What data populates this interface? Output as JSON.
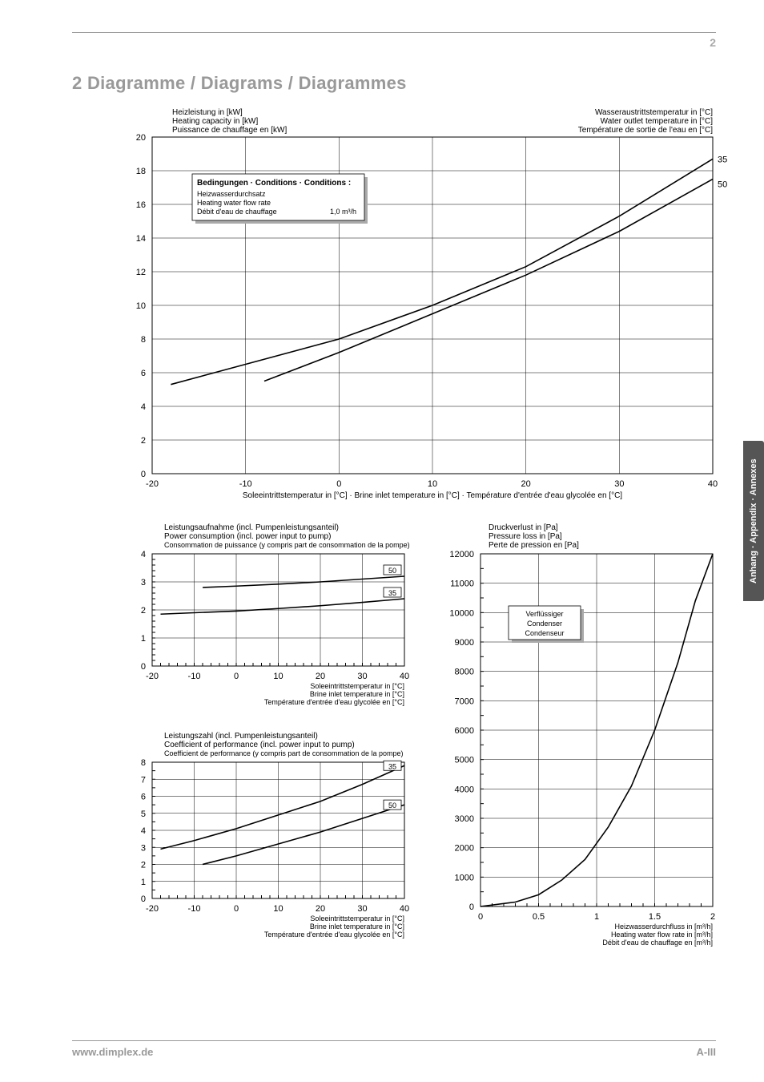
{
  "page_top_number": "2",
  "section_title": "2  Diagramme / Diagrams / Diagrammes",
  "side_tab": "Anhang · Appendix · Annexes",
  "footer_left": "www.dimplex.de",
  "footer_right": "A-III",
  "chart1": {
    "y_title_de": "Heizleistung in [kW]",
    "y_title_en": "Heating capacity in [kW]",
    "y_title_fr": "Puissance de chauffage en [kW]",
    "r_title_de": "Wasseraustrittstemperatur in [°C]",
    "r_title_en": "Water outlet temperature in [°C]",
    "r_title_fr": "Température de sortie de l'eau en [°C]",
    "x_title": "Soleeintrittstemperatur in [°C] · Brine inlet temperature in [°C] · Température d'entrée d'eau glycolée en [°C]",
    "xlim": [
      -20,
      40
    ],
    "xtick_step": 10,
    "ylim": [
      0,
      20
    ],
    "ytick_step": 2,
    "series": [
      {
        "label": "35",
        "points": [
          [
            -18,
            5.3
          ],
          [
            -10,
            6.5
          ],
          [
            0,
            8.0
          ],
          [
            10,
            10.0
          ],
          [
            20,
            12.3
          ],
          [
            30,
            15.3
          ],
          [
            40,
            18.7
          ]
        ]
      },
      {
        "label": "50",
        "points": [
          [
            -8,
            5.5
          ],
          [
            0,
            7.2
          ],
          [
            10,
            9.5
          ],
          [
            20,
            11.8
          ],
          [
            30,
            14.4
          ],
          [
            40,
            17.5
          ]
        ]
      }
    ],
    "cond_title": "Bedingungen · Conditions · Conditions :",
    "cond_l1": "Heizwasserdurchsatz",
    "cond_l2": "Heating water flow rate",
    "cond_l3": "Débit d'eau de chauffage",
    "cond_val": "1,0  m³/h"
  },
  "chart2": {
    "y_title_de": "Leistungsaufnahme (incl. Pumpenleistungsanteil)",
    "y_title_en": "Power consumption (incl. power input to pump)",
    "y_title_fr": "Consommation de puissance (y compris part de consommation de la pompe)",
    "x_title_de": "Soleeintrittstemperatur in [°C]",
    "x_title_en": "Brine inlet temperature in [°C]",
    "x_title_fr": "Température d'entrée d'eau glycolée en [°C]",
    "xlim": [
      -20,
      40
    ],
    "xtick_step": 10,
    "ylim": [
      0,
      4
    ],
    "ytick_step": 1,
    "series": [
      {
        "label": "50",
        "points": [
          [
            -8,
            2.8
          ],
          [
            0,
            2.85
          ],
          [
            10,
            2.92
          ],
          [
            20,
            3.0
          ],
          [
            30,
            3.1
          ],
          [
            40,
            3.2
          ]
        ]
      },
      {
        "label": "35",
        "points": [
          [
            -18,
            1.85
          ],
          [
            -10,
            1.9
          ],
          [
            0,
            1.96
          ],
          [
            10,
            2.05
          ],
          [
            20,
            2.15
          ],
          [
            30,
            2.27
          ],
          [
            40,
            2.4
          ]
        ]
      }
    ]
  },
  "chart3": {
    "y_title_de": "Leistungszahl (incl. Pumpenleistungsanteil)",
    "y_title_en": "Coefficient of performance (incl. power input to pump)",
    "y_title_fr": "Coefficient de performance (y compris part de consommation de la pompe)",
    "x_title_de": "Soleeintrittstemperatur in [°C]",
    "x_title_en": "Brine inlet temperature in [°C]",
    "x_title_fr": "Température d'entrée d'eau glycolée en [°C]",
    "xlim": [
      -20,
      40
    ],
    "xtick_step": 10,
    "ylim": [
      0,
      8
    ],
    "ytick_step": 1,
    "series": [
      {
        "label": "35",
        "points": [
          [
            -18,
            2.9
          ],
          [
            -10,
            3.4
          ],
          [
            0,
            4.1
          ],
          [
            10,
            4.9
          ],
          [
            20,
            5.7
          ],
          [
            30,
            6.7
          ],
          [
            40,
            7.8
          ]
        ]
      },
      {
        "label": "50",
        "points": [
          [
            -8,
            2.0
          ],
          [
            0,
            2.5
          ],
          [
            10,
            3.2
          ],
          [
            20,
            3.9
          ],
          [
            30,
            4.7
          ],
          [
            40,
            5.5
          ]
        ]
      }
    ]
  },
  "chart4": {
    "y_title_de": "Druckverlust in [Pa]",
    "y_title_en": "Pressure loss in [Pa]",
    "y_title_fr": "Perte de pression en [Pa]",
    "x_title_de": "Heizwasserdurchfluss in [m³/h]",
    "x_title_en": "Heating water flow rate in [m³/h]",
    "x_title_fr": "Débit d'eau de chauffage en [m³/h]",
    "xlim": [
      0,
      2
    ],
    "xtick_step": 0.5,
    "ylim": [
      0,
      12000
    ],
    "ytick_step": 1000,
    "box_l1": "Verflüssiger",
    "box_l2": "Condenser",
    "box_l3": "Condenseur",
    "series": [
      {
        "points": [
          [
            0,
            0
          ],
          [
            0.3,
            150
          ],
          [
            0.5,
            400
          ],
          [
            0.7,
            900
          ],
          [
            0.9,
            1600
          ],
          [
            1.1,
            2700
          ],
          [
            1.3,
            4100
          ],
          [
            1.5,
            6000
          ],
          [
            1.7,
            8300
          ],
          [
            1.85,
            10400
          ],
          [
            2.0,
            12000
          ]
        ]
      }
    ]
  }
}
